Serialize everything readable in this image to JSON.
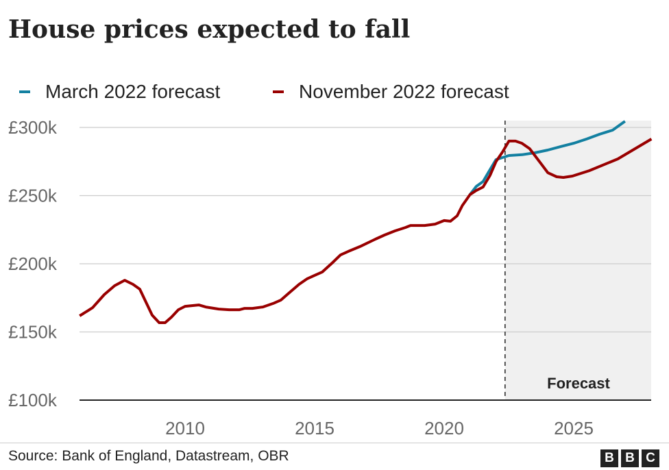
{
  "chart_data": {
    "type": "line",
    "title": "House prices expected to fall",
    "xlim": [
      2006,
      2028
    ],
    "ylim": [
      100,
      305
    ],
    "x_ticks": [
      2010,
      2015,
      2020,
      2025
    ],
    "x_tick_labels": [
      "2010",
      "2015",
      "2020",
      "2025"
    ],
    "y_ticks": [
      100,
      150,
      200,
      250,
      300
    ],
    "y_tick_labels": [
      "£100k",
      "£150k",
      "£200k",
      "£250k",
      "£300k"
    ],
    "grid": "horizontal",
    "legend_placement": "top-left",
    "forecast_start": 2022.35,
    "forecast_label": "Forecast",
    "series": [
      {
        "name": "March 2022 forecast",
        "color": "#1380a1",
        "x": [
          2021.0,
          2021.24,
          2021.5,
          2021.8,
          2022.0,
          2022.25,
          2022.5,
          2023.0,
          2023.5,
          2024.0,
          2024.5,
          2025.0,
          2025.5,
          2026.0,
          2026.5,
          2026.98
        ],
        "y": [
          250.8,
          256.8,
          260.3,
          270,
          276.4,
          277.9,
          279.4,
          280,
          281.4,
          283.4,
          286,
          288.4,
          291.5,
          295,
          298,
          304.5
        ]
      },
      {
        "name": "November 2022 forecast",
        "color": "#990000",
        "x": [
          2005.93,
          2006.43,
          2006.88,
          2007.28,
          2007.67,
          2007.99,
          2008.25,
          2008.73,
          2009.0,
          2009.23,
          2009.47,
          2009.74,
          2010.0,
          2010.53,
          2010.8,
          2011.3,
          2011.7,
          2012.1,
          2012.3,
          2012.6,
          2013.0,
          2013.4,
          2013.7,
          2014.0,
          2014.4,
          2014.7,
          2015.0,
          2015.3,
          2015.7,
          2016.0,
          2016.35,
          2016.75,
          2017.35,
          2017.7,
          2018.1,
          2018.5,
          2018.7,
          2019.25,
          2019.65,
          2020.0,
          2020.24,
          2020.5,
          2020.7,
          2021.0,
          2021.24,
          2021.5,
          2021.77,
          2022.0,
          2022.25,
          2022.5,
          2022.75,
          2023.0,
          2023.3,
          2023.76,
          2024.0,
          2024.34,
          2024.6,
          2024.95,
          2025.6,
          2026.7,
          2028.0
        ],
        "y": [
          161.8,
          167.8,
          177.4,
          183.9,
          187.9,
          184.9,
          181.4,
          162.3,
          156.8,
          156.8,
          160.8,
          166.3,
          168.8,
          169.8,
          168.3,
          166.8,
          166.3,
          166.3,
          167.3,
          167.3,
          168.3,
          170.9,
          173.4,
          178.4,
          184.9,
          188.9,
          191.5,
          194.0,
          201.0,
          206.5,
          209.5,
          212.6,
          218.1,
          221.1,
          224.1,
          226.6,
          228.1,
          228.1,
          229.1,
          231.7,
          231.2,
          235.2,
          242.7,
          250.8,
          253.8,
          256.3,
          264.8,
          274.9,
          281.9,
          290,
          290,
          288.4,
          284.4,
          272.9,
          266.8,
          263.8,
          263.3,
          264.3,
          268.3,
          276.9,
          291.5
        ]
      }
    ]
  },
  "footer": {
    "source": "Source: Bank of England, Datastream, OBR",
    "logo": [
      "B",
      "B",
      "C"
    ]
  }
}
